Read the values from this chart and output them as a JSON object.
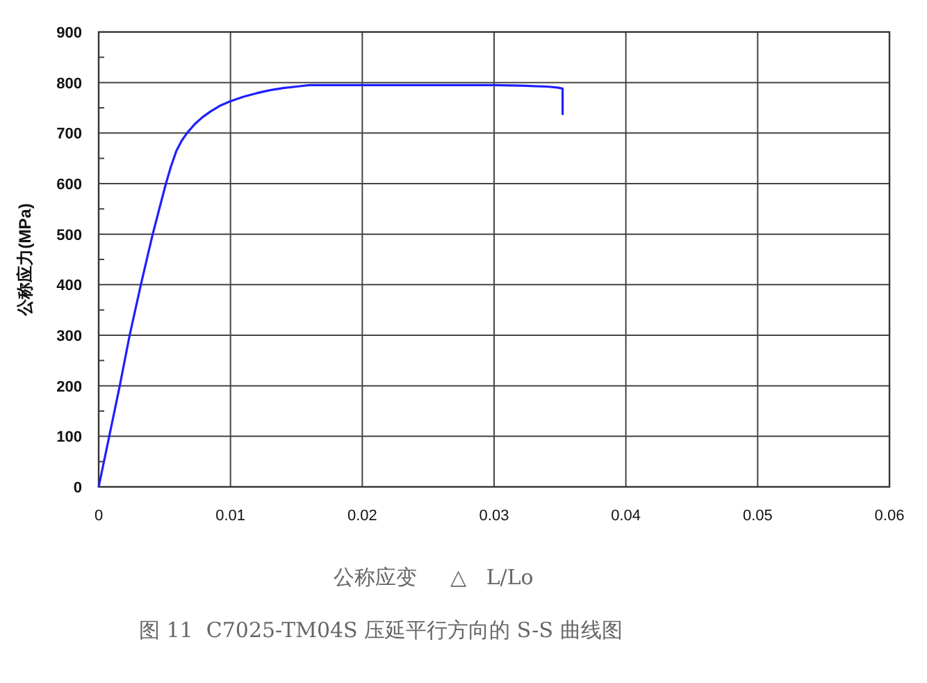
{
  "chart_data": {
    "type": "line",
    "xlabel": "公称应变     △   L/Lo",
    "ylabel": "公称应力(MPa)",
    "annotations": [
      "图 11  C7025-TM04S 压延平行方向的 S-S 曲线图"
    ],
    "series": [
      {
        "color": "#1f1fff",
        "x": [
          0,
          0.0008,
          0.0016,
          0.00235,
          0.0032,
          0.0041,
          0.0051,
          0.0055,
          0.0059,
          0.0063,
          0.0067,
          0.0073,
          0.0079,
          0.0085,
          0.0092,
          0.01,
          0.011,
          0.012,
          0.013,
          0.014,
          0.015,
          0.016,
          0.02,
          0.025,
          0.03,
          0.032,
          0.034,
          0.0348,
          0.0352,
          0.0352
        ],
        "values": [
          0,
          100,
          200,
          300,
          400,
          500,
          600,
          635,
          665,
          685,
          700,
          718,
          732,
          743,
          754,
          763,
          772,
          779,
          785,
          789,
          792,
          795,
          795,
          795,
          795,
          794,
          792,
          790,
          788,
          736
        ]
      }
    ],
    "xlim": [
      0,
      0.06
    ],
    "xticks": [
      0,
      0.01,
      0.02,
      0.03,
      0.04,
      0.05,
      0.06
    ],
    "ylim": [
      0,
      900
    ],
    "yticks": [
      0,
      {
        "value": 50,
        "label": null
      },
      100,
      {
        "value": 150,
        "label": null
      },
      200,
      {
        "value": 250,
        "label": null
      },
      300,
      {
        "value": 350,
        "label": null
      },
      400,
      {
        "value": 450,
        "label": null
      },
      500,
      {
        "value": 550,
        "label": null
      },
      600,
      {
        "value": 650,
        "label": null
      },
      700,
      {
        "value": 750,
        "label": null
      },
      800,
      {
        "value": 850,
        "label": null
      },
      900
    ],
    "grid": true,
    "marker": "none",
    "line_style": "solid"
  }
}
